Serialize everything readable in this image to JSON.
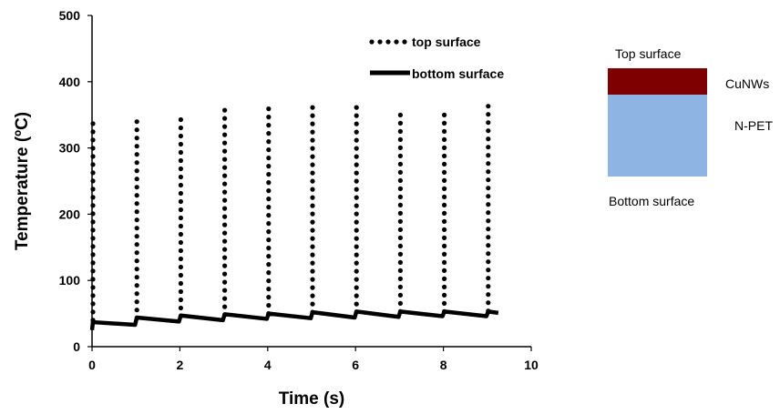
{
  "chart_data": {
    "type": "scatter",
    "xlabel": "Time (s)",
    "ylabel": "Temperature (ºC)",
    "xlim": [
      0,
      10
    ],
    "ylim": [
      0,
      500
    ],
    "xticks": [
      0,
      2,
      4,
      6,
      8,
      10
    ],
    "yticks": [
      0,
      100,
      200,
      300,
      400,
      500
    ],
    "grid": false,
    "legend_position": "top-right",
    "series": [
      {
        "name": "top surface",
        "style": "dotted",
        "color": "#000000",
        "pulses": [
          {
            "t": 0,
            "peak": 340,
            "base": 40
          },
          {
            "t": 1,
            "peak": 347,
            "base": 43
          },
          {
            "t": 2,
            "peak": 352,
            "base": 46
          },
          {
            "t": 3,
            "peak": 358,
            "base": 48
          },
          {
            "t": 4,
            "peak": 362,
            "base": 50
          },
          {
            "t": 5,
            "peak": 364,
            "base": 52
          },
          {
            "t": 6,
            "peak": 361,
            "base": 52
          },
          {
            "t": 7,
            "peak": 357,
            "base": 53
          },
          {
            "t": 8,
            "peak": 361,
            "base": 53
          },
          {
            "t": 9,
            "peak": 364,
            "base": 54
          }
        ]
      },
      {
        "name": "bottom surface",
        "style": "solid",
        "color": "#000000",
        "x": [
          0,
          0.02,
          0.98,
          1.02,
          1.98,
          2.02,
          2.98,
          3.02,
          3.98,
          4.02,
          4.98,
          5.02,
          5.98,
          6.02,
          6.98,
          7.02,
          7.98,
          8.02,
          8.98,
          9.02,
          9.25
        ],
        "y": [
          25,
          37,
          33,
          44,
          38,
          47,
          40,
          49,
          42,
          50,
          43,
          52,
          44,
          53,
          45,
          53,
          46,
          53,
          46,
          53,
          51
        ]
      }
    ]
  },
  "diagram": {
    "top_label": "Top surface",
    "bottom_label": "Bottom surface",
    "layers": [
      {
        "name": "CuNWs",
        "color": "#7f0000"
      },
      {
        "name": "N-PET",
        "color": "#8eb4e3"
      }
    ]
  }
}
